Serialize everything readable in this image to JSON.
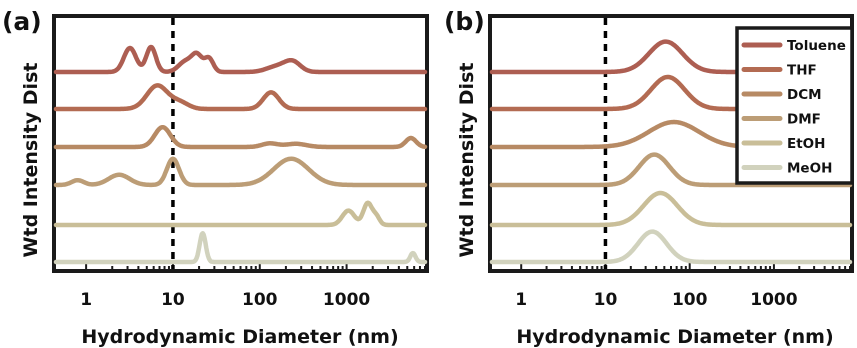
{
  "colors": {
    "Toluene": "#ad5e52",
    "THF": "#b36b52",
    "DCM": "#b78a64",
    "DMF": "#bc9d76",
    "EtOH": "#c9be98",
    "MeOH": "#d1d2bd"
  },
  "chart_data": [
    {
      "panel_label": "(a)",
      "type": "line",
      "xlabel": "Hydrodynamic Diameter (nm)",
      "ylabel": "Wtd Intensity Dist",
      "xscale": "log",
      "xlim": [
        0.45,
        8000
      ],
      "xticks": [
        1,
        10,
        100,
        1000
      ],
      "xtick_labels": [
        "1",
        "10",
        "100",
        "1000"
      ],
      "reference_line_x": 10,
      "legend": "none",
      "series": [
        {
          "name": "Toluene",
          "baseline": 0,
          "peaks": [
            [
              3.2,
              0.75,
              0.07
            ],
            [
              5.6,
              0.78,
              0.055
            ],
            [
              14,
              0.33,
              0.08
            ],
            [
              19,
              0.5,
              0.06
            ],
            [
              26,
              0.42,
              0.05
            ],
            [
              160,
              0.18,
              0.12
            ],
            [
              240,
              0.3,
              0.09
            ]
          ]
        },
        {
          "name": "THF",
          "baseline": 0,
          "peaks": [
            [
              6.6,
              0.73,
              0.12
            ],
            [
              12,
              0.2,
              0.1
            ],
            [
              135,
              0.52,
              0.09
            ]
          ]
        },
        {
          "name": "DCM",
          "baseline": 0,
          "peaks": [
            [
              7.6,
              0.62,
              0.09
            ],
            [
              130,
              0.11,
              0.09
            ],
            [
              260,
              0.1,
              0.12
            ],
            [
              5500,
              0.28,
              0.06
            ]
          ]
        },
        {
          "name": "DMF",
          "baseline": 0,
          "peaks": [
            [
              0.8,
              0.15,
              0.07
            ],
            [
              2.4,
              0.32,
              0.12
            ],
            [
              10,
              0.82,
              0.07
            ],
            [
              230,
              0.82,
              0.2
            ]
          ]
        },
        {
          "name": "EtOH",
          "baseline": 0,
          "peaks": [
            [
              1050,
              0.45,
              0.07
            ],
            [
              1750,
              0.68,
              0.05
            ],
            [
              2200,
              0.25,
              0.04
            ]
          ]
        },
        {
          "name": "MeOH",
          "baseline": 0,
          "peaks": [
            [
              22,
              0.9,
              0.035
            ],
            [
              5800,
              0.28,
              0.03
            ]
          ]
        }
      ]
    },
    {
      "panel_label": "(b)",
      "type": "line",
      "xlabel": "Hydrodynamic Diameter (nm)",
      "ylabel": "Wtd Intensity Dist",
      "xscale": "log",
      "xlim": [
        0.45,
        8000
      ],
      "xticks": [
        1,
        10,
        100,
        1000
      ],
      "xtick_labels": [
        "1",
        "10",
        "100",
        "1000"
      ],
      "reference_line_x": 10,
      "legend": "top-right",
      "series": [
        {
          "name": "Toluene",
          "baseline": 0,
          "peaks": [
            [
              52,
              0.95,
              0.2
            ]
          ]
        },
        {
          "name": "THF",
          "baseline": 0,
          "peaks": [
            [
              55,
              1.0,
              0.2
            ]
          ]
        },
        {
          "name": "DCM",
          "baseline": 0,
          "peaks": [
            [
              65,
              0.78,
              0.3
            ]
          ]
        },
        {
          "name": "DMF",
          "baseline": 0,
          "peaks": [
            [
              38,
              0.95,
              0.18
            ]
          ]
        },
        {
          "name": "EtOH",
          "baseline": 0,
          "peaks": [
            [
              45,
              1.0,
              0.2
            ]
          ]
        },
        {
          "name": "MeOH",
          "baseline": 0,
          "peaks": [
            [
              36,
              0.95,
              0.17
            ]
          ]
        }
      ]
    }
  ]
}
